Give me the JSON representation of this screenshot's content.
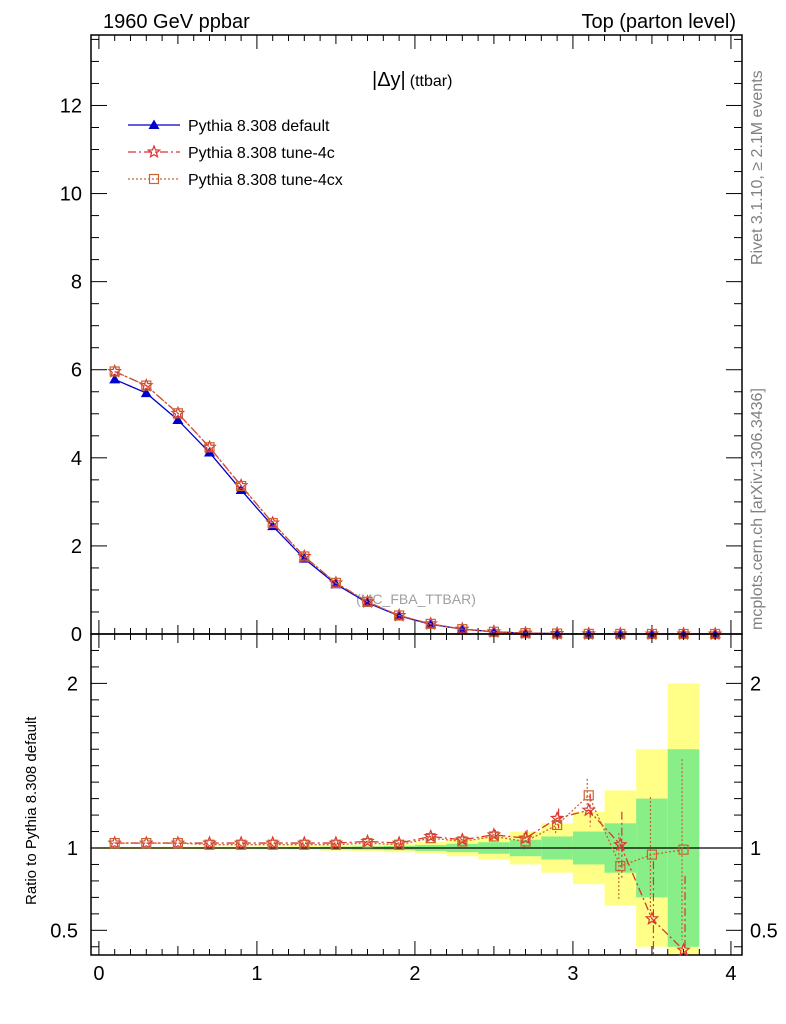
{
  "header": {
    "left": "1960 GeV ppbar",
    "right": "Top (parton level)"
  },
  "side_labels": {
    "rivet": "Rivet 3.1.10, ≥ 2.1M events",
    "mcplots": "mcplots.cern.ch [arXiv:1306.3436]"
  },
  "plot_title": {
    "main": "|Δy|",
    "sub": "(ttbar)"
  },
  "watermark": "(MC_FBA_TTBAR)",
  "colors": {
    "default": "#0000cc",
    "tune4c": "#dd3333",
    "tune4cx": "#c86432",
    "band_inner": "#88ee88",
    "band_outer": "#ffff88"
  },
  "chart_data": [
    {
      "type": "line",
      "panel": "main",
      "x": [
        0.1,
        0.3,
        0.5,
        0.7,
        0.9,
        1.1,
        1.3,
        1.5,
        1.7,
        1.9,
        2.1,
        2.3,
        2.5,
        2.7,
        2.9,
        3.1,
        3.3,
        3.5,
        3.7,
        3.9
      ],
      "xlim": [
        -0.05,
        4.07
      ],
      "ylim": [
        0,
        13.6
      ],
      "xticks": [
        "0",
        "1",
        "2",
        "3",
        "4"
      ],
      "yticks": [
        "0",
        "2",
        "4",
        "6",
        "8",
        "10",
        "12"
      ],
      "series": [
        {
          "name": "Pythia 8.308 default",
          "key": "default",
          "values": [
            5.78,
            5.47,
            4.86,
            4.12,
            3.27,
            2.45,
            1.71,
            1.13,
            0.71,
            0.41,
            0.22,
            0.11,
            0.05,
            0.02,
            0.01,
            0.003,
            0.001,
            0.0005,
            0.0002,
            0.0001
          ]
        },
        {
          "name": "Pythia 8.308 tune-4c",
          "key": "tune4c",
          "values": [
            5.96,
            5.64,
            5.01,
            4.24,
            3.37,
            2.52,
            1.76,
            1.16,
            0.73,
            0.42,
            0.23,
            0.11,
            0.05,
            0.02,
            0.01,
            0.003,
            0.001,
            0.0003,
            0.0001,
            0.0001
          ]
        },
        {
          "name": "Pythia 8.308 tune-4cx",
          "key": "tune4cx",
          "values": [
            5.96,
            5.64,
            5.01,
            4.24,
            3.36,
            2.52,
            1.76,
            1.16,
            0.73,
            0.42,
            0.23,
            0.11,
            0.05,
            0.02,
            0.01,
            0.003,
            0.001,
            0.0005,
            0.0002,
            0.0001
          ]
        }
      ]
    },
    {
      "type": "line",
      "panel": "ratio",
      "ylabel": "Ratio to Pythia 8.308 default",
      "xlim": [
        -0.05,
        4.07
      ],
      "ylim": [
        0.35,
        2.3
      ],
      "yticks": [
        "0.5",
        "1",
        "2"
      ],
      "band": {
        "edges": [
          0,
          0.2,
          0.4,
          0.6,
          0.8,
          1.0,
          1.2,
          1.4,
          1.6,
          1.8,
          2.0,
          2.2,
          2.4,
          2.6,
          2.8,
          3.0,
          3.2,
          3.4,
          3.6,
          3.8
        ],
        "inner": [
          0.003,
          0.003,
          0.003,
          0.004,
          0.004,
          0.005,
          0.006,
          0.008,
          0.01,
          0.013,
          0.018,
          0.025,
          0.035,
          0.05,
          0.07,
          0.1,
          0.15,
          0.3,
          0.6
        ],
        "outer": [
          0.006,
          0.006,
          0.007,
          0.008,
          0.009,
          0.01,
          0.012,
          0.016,
          0.02,
          0.026,
          0.036,
          0.05,
          0.07,
          0.1,
          0.15,
          0.22,
          0.35,
          0.6,
          1.0
        ]
      },
      "x": [
        0.1,
        0.3,
        0.5,
        0.7,
        0.9,
        1.1,
        1.3,
        1.5,
        1.7,
        1.9,
        2.1,
        2.3,
        2.5,
        2.7,
        2.9,
        3.1,
        3.3,
        3.5,
        3.7
      ],
      "series": [
        {
          "name": "Pythia 8.308 tune-4c",
          "key": "tune4c",
          "values": [
            1.03,
            1.03,
            1.03,
            1.03,
            1.03,
            1.03,
            1.03,
            1.03,
            1.04,
            1.03,
            1.07,
            1.05,
            1.08,
            1.06,
            1.18,
            1.23,
            1.02,
            0.57,
            0.38
          ],
          "errors": [
            0.003,
            0.003,
            0.003,
            0.004,
            0.004,
            0.005,
            0.006,
            0.008,
            0.01,
            0.013,
            0.018,
            0.025,
            0.03,
            0.05,
            0.06,
            0.1,
            0.2,
            0.35,
            0.45
          ]
        },
        {
          "name": "Pythia 8.308 tune-4cx",
          "key": "tune4cx",
          "values": [
            1.03,
            1.03,
            1.03,
            1.02,
            1.02,
            1.02,
            1.02,
            1.02,
            1.03,
            1.02,
            1.06,
            1.04,
            1.07,
            1.04,
            1.14,
            1.32,
            0.89,
            0.96,
            0.99
          ],
          "errors": [
            0.003,
            0.003,
            0.003,
            0.004,
            0.004,
            0.005,
            0.006,
            0.008,
            0.01,
            0.013,
            0.018,
            0.025,
            0.03,
            0.05,
            0.06,
            0.1,
            0.2,
            0.35,
            0.55
          ]
        }
      ]
    }
  ]
}
